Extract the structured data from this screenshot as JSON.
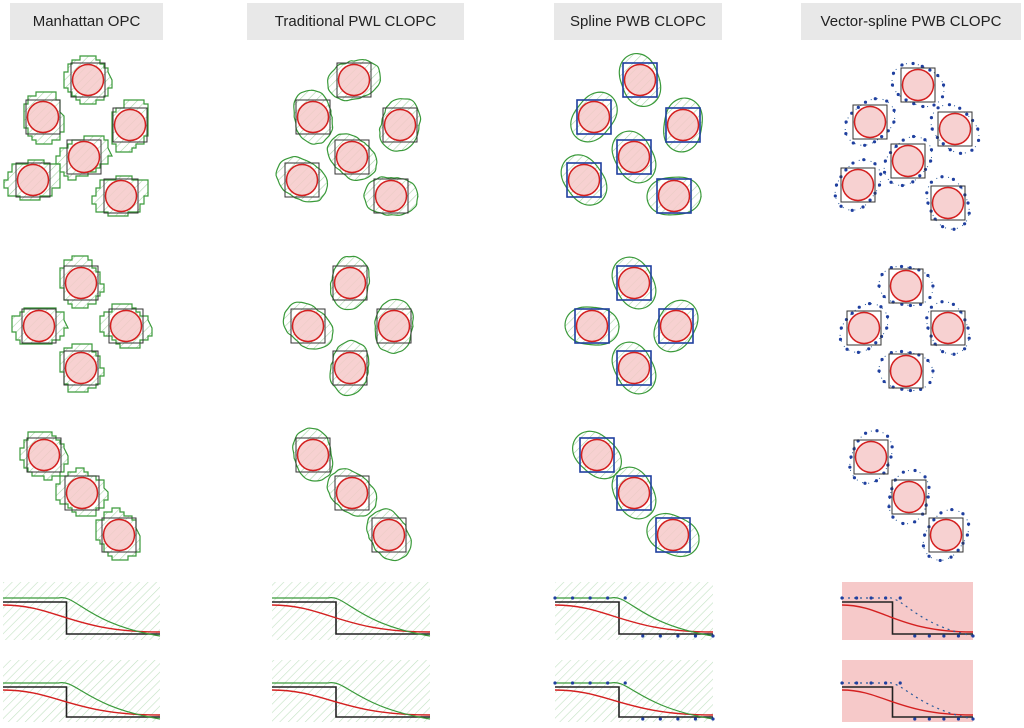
{
  "columns": [
    {
      "title": "Manhattan OPC",
      "style": "manhattan"
    },
    {
      "title": "Traditional PWL CLOPC",
      "style": "pwl"
    },
    {
      "title": "Spline PWB CLOPC",
      "style": "spline"
    },
    {
      "title": "Vector-spline PWB CLOPC",
      "style": "vector"
    }
  ],
  "rows": [
    {
      "pattern": "six-contact cluster"
    },
    {
      "pattern": "four-contact cross"
    },
    {
      "pattern": "three-contact diagonal"
    },
    {
      "pattern": "line-end pair"
    }
  ],
  "colors": {
    "mask_outline": "#3a9a3a",
    "mask_hatch": "#9ccf9c",
    "contour": "#d42020",
    "contour_fill": "#f6c9c9",
    "target": "#333333",
    "spline_ctrl": "#1f3f9f",
    "header_bg": "#e8e8e8"
  }
}
